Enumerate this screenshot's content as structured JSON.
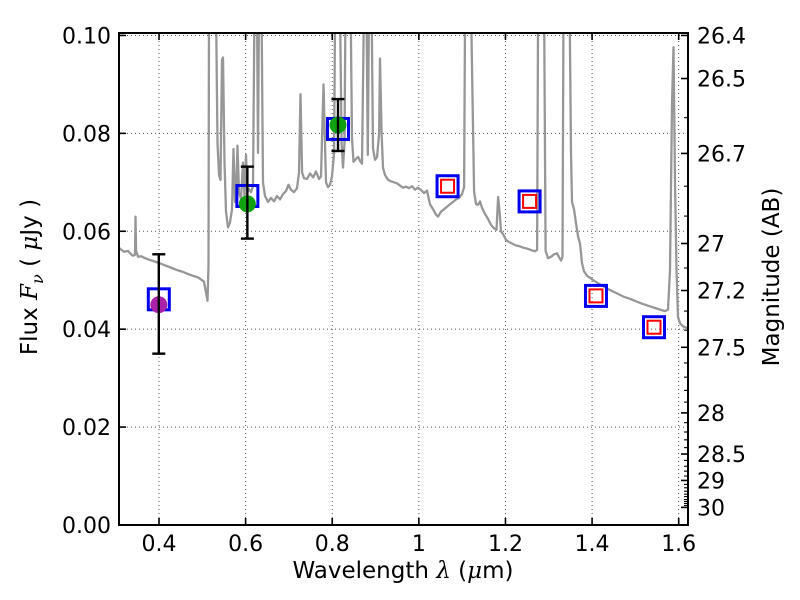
{
  "figure": {
    "background": "#FFFFFF",
    "xlabel_segments": [
      {
        "t": "Wavelength  "
      },
      {
        "t": "λ",
        "i": true
      },
      {
        "t": " ("
      },
      {
        "t": "μ",
        "i": true
      },
      {
        "t": "m)"
      }
    ],
    "ylabel_left_segments": [
      {
        "t": "Flux  "
      },
      {
        "t": "F",
        "i": true
      },
      {
        "t": "ν",
        "i": true,
        "sub": true
      },
      {
        "t": "  ( "
      },
      {
        "t": "μ",
        "i": true
      },
      {
        "t": "Jy )"
      }
    ],
    "ylabel_right": "Magnitude (AB)"
  },
  "chart_data": {
    "type": "line",
    "title": "",
    "xlabel": "Wavelength λ (μm)",
    "ylabel": "Flux Fν ( μJy )",
    "ylabel_right": "Magnitude (AB)",
    "grid": true,
    "legend_position": "none",
    "xlim": [
      0.3076,
      1.6215
    ],
    "ylim": [
      0,
      0.1005
    ],
    "xticks": [
      {
        "label": "0.4",
        "value": 0.4
      },
      {
        "label": "0.6",
        "value": 0.6
      },
      {
        "label": "0.8",
        "value": 0.8
      },
      {
        "label": "1",
        "value": 1.0
      },
      {
        "label": "1.2",
        "value": 1.2
      },
      {
        "label": "1.4",
        "value": 1.4
      },
      {
        "label": "1.6",
        "value": 1.6
      }
    ],
    "yticks_left": [
      {
        "label": "0.00",
        "value": 0.0
      },
      {
        "label": "0.02",
        "value": 0.02
      },
      {
        "label": "0.04",
        "value": 0.04
      },
      {
        "label": "0.06",
        "value": 0.06
      },
      {
        "label": "0.08",
        "value": 0.08
      },
      {
        "label": "0.10",
        "value": 0.1
      }
    ],
    "yticks_right": [
      {
        "label": "26.4",
        "flux": 0.1
      },
      {
        "label": "26.5",
        "flux": 0.0912
      },
      {
        "label": "26.7",
        "flux": 0.0759
      },
      {
        "label": "27",
        "flux": 0.0575
      },
      {
        "label": "27.2",
        "flux": 0.0479
      },
      {
        "label": "27.5",
        "flux": 0.0363
      },
      {
        "label": "28",
        "flux": 0.0229
      },
      {
        "label": "28.5",
        "flux": 0.0145
      },
      {
        "label": "29",
        "flux": 0.0091
      },
      {
        "label": "30",
        "flux": 0.0036
      }
    ],
    "yticks_right_minor_flux": [
      0.0832,
      0.0692,
      0.0631,
      0.0525,
      0.0437,
      0.0398,
      0.0331,
      0.0302,
      0.0275,
      0.0251,
      0.0209,
      0.019,
      0.0174,
      0.0158,
      0.0132,
      0.012,
      0.011,
      0.01,
      0.0083,
      0.0076,
      0.0069,
      0.0063,
      0.0058,
      0.0052,
      0.0048,
      0.0044,
      0.004
    ],
    "style": {
      "spectrum_color": "#979797",
      "grid_color": "#555555",
      "frame_color": "#000000",
      "errorbar_color": "#000000",
      "blue": "#0000EE",
      "red": "#FF0000",
      "green": "#10A010",
      "magenta": "#AA22AA",
      "square_size": 21,
      "red_square_size": 13,
      "circle_radius": 8.5
    },
    "detections": [
      {
        "x": 0.3995,
        "y": 0.045,
        "err_lo": 0.035,
        "err_hi": 0.0553,
        "square_y": 0.0461,
        "color": "#AA22AA"
      },
      {
        "x": 0.604,
        "y": 0.0656,
        "err_lo": 0.0585,
        "err_hi": 0.0732,
        "square_y": 0.0672,
        "color": "#10A010"
      },
      {
        "x": 0.8133,
        "y": 0.0817,
        "err_lo": 0.0764,
        "err_hi": 0.087,
        "square_y": 0.0809,
        "color": "#10A010"
      }
    ],
    "upper_limits": [
      {
        "x": 1.0663,
        "y": 0.0692
      },
      {
        "x": 1.2557,
        "y": 0.0661
      },
      {
        "x": 1.409,
        "y": 0.0468
      },
      {
        "x": 1.543,
        "y": 0.0404
      }
    ],
    "spectrum": {
      "name": "model-spectrum",
      "points": [
        [
          0.3076,
          0.0566
        ],
        [
          0.3192,
          0.0558
        ],
        [
          0.3284,
          0.056
        ],
        [
          0.3353,
          0.0553
        ],
        [
          0.3399,
          0.055
        ],
        [
          0.3445,
          0.0552
        ],
        [
          0.3457,
          0.063
        ],
        [
          0.347,
          0.056
        ],
        [
          0.3515,
          0.0548
        ],
        [
          0.3584,
          0.0549
        ],
        [
          0.3677,
          0.0545
        ],
        [
          0.3769,
          0.0542
        ],
        [
          0.3838,
          0.054
        ],
        [
          0.3908,
          0.0538
        ],
        [
          0.3977,
          0.0536
        ],
        [
          0.4092,
          0.0532
        ],
        [
          0.4208,
          0.0528
        ],
        [
          0.4323,
          0.0524
        ],
        [
          0.4439,
          0.052
        ],
        [
          0.4554,
          0.0517
        ],
        [
          0.467,
          0.0513
        ],
        [
          0.4785,
          0.0509
        ],
        [
          0.4901,
          0.0506
        ],
        [
          0.4993,
          0.05
        ],
        [
          0.5039,
          0.0497
        ],
        [
          0.5085,
          0.0475
        ],
        [
          0.512,
          0.0458
        ],
        [
          0.5143,
          0.053
        ],
        [
          0.5155,
          0.106
        ],
        [
          0.5316,
          0.106
        ],
        [
          0.5351,
          0.078
        ],
        [
          0.5386,
          0.0715
        ],
        [
          0.542,
          0.0705
        ],
        [
          0.5455,
          0.095
        ],
        [
          0.5478,
          0.0955
        ],
        [
          0.5513,
          0.074
        ],
        [
          0.5547,
          0.064
        ],
        [
          0.5594,
          0.0608
        ],
        [
          0.564,
          0.0618
        ],
        [
          0.5686,
          0.0645
        ],
        [
          0.5721,
          0.0768
        ],
        [
          0.5755,
          0.066
        ],
        [
          0.5779,
          0.068
        ],
        [
          0.5813,
          0.0775
        ],
        [
          0.5848,
          0.068
        ],
        [
          0.5894,
          0.0665
        ],
        [
          0.594,
          0.074
        ],
        [
          0.5975,
          0.0672
        ],
        [
          0.6009,
          0.0756
        ],
        [
          0.6044,
          0.068
        ],
        [
          0.6078,
          0.0686
        ],
        [
          0.6125,
          0.068
        ],
        [
          0.6171,
          0.0692
        ],
        [
          0.6205,
          0.106
        ],
        [
          0.6263,
          0.106
        ],
        [
          0.6286,
          0.076
        ],
        [
          0.6309,
          0.106
        ],
        [
          0.6367,
          0.106
        ],
        [
          0.6402,
          0.07
        ],
        [
          0.6448,
          0.0672
        ],
        [
          0.6517,
          0.066
        ],
        [
          0.6586,
          0.0668
        ],
        [
          0.6656,
          0.0661
        ],
        [
          0.6725,
          0.0672
        ],
        [
          0.6794,
          0.0665
        ],
        [
          0.6864,
          0.0676
        ],
        [
          0.6933,
          0.0682
        ],
        [
          0.6991,
          0.0695
        ],
        [
          0.7048,
          0.0685
        ],
        [
          0.7118,
          0.068
        ],
        [
          0.7187,
          0.0688
        ],
        [
          0.7233,
          0.072
        ],
        [
          0.7268,
          0.088
        ],
        [
          0.7303,
          0.072
        ],
        [
          0.7349,
          0.0708
        ],
        [
          0.7418,
          0.0707
        ],
        [
          0.7487,
          0.0718
        ],
        [
          0.7557,
          0.071
        ],
        [
          0.7626,
          0.0722
        ],
        [
          0.7695,
          0.0707
        ],
        [
          0.7741,
          0.0712
        ],
        [
          0.7799,
          0.09
        ],
        [
          0.7857,
          0.07
        ],
        [
          0.7903,
          0.069
        ],
        [
          0.7949,
          0.0695
        ],
        [
          0.7995,
          0.0712
        ],
        [
          0.8042,
          0.076
        ],
        [
          0.8065,
          0.106
        ],
        [
          0.818,
          0.106
        ],
        [
          0.8215,
          0.078
        ],
        [
          0.8249,
          0.073
        ],
        [
          0.8284,
          0.078
        ],
        [
          0.8307,
          0.106
        ],
        [
          0.8423,
          0.106
        ],
        [
          0.8457,
          0.079
        ],
        [
          0.8492,
          0.0742
        ],
        [
          0.855,
          0.0748
        ],
        [
          0.8596,
          0.0752
        ],
        [
          0.8642,
          0.0744
        ],
        [
          0.8688,
          0.0738
        ],
        [
          0.8734,
          0.106
        ],
        [
          0.8792,
          0.106
        ],
        [
          0.8822,
          0.0756
        ],
        [
          0.885,
          0.106
        ],
        [
          0.8908,
          0.106
        ],
        [
          0.8942,
          0.077
        ],
        [
          0.8988,
          0.0746
        ],
        [
          0.9035,
          0.0752
        ],
        [
          0.9081,
          0.08
        ],
        [
          0.9104,
          0.0953
        ],
        [
          0.9139,
          0.08
        ],
        [
          0.9173,
          0.073
        ],
        [
          0.9219,
          0.0715
        ],
        [
          0.9289,
          0.0705
        ],
        [
          0.9358,
          0.0702
        ],
        [
          0.9427,
          0.07
        ],
        [
          0.9496,
          0.0698
        ],
        [
          0.9566,
          0.0693
        ],
        [
          0.9635,
          0.0689
        ],
        [
          0.9704,
          0.0691
        ],
        [
          0.9773,
          0.0688
        ],
        [
          0.9843,
          0.0692
        ],
        [
          0.9912,
          0.0685
        ],
        [
          0.9981,
          0.0689
        ],
        [
          1.0051,
          0.0684
        ],
        [
          1.012,
          0.0678
        ],
        [
          1.0189,
          0.0683
        ],
        [
          1.0258,
          0.0655
        ],
        [
          1.0328,
          0.0645
        ],
        [
          1.0397,
          0.0634
        ],
        [
          1.0443,
          0.063
        ],
        [
          1.0512,
          0.064
        ],
        [
          1.0582,
          0.0645
        ],
        [
          1.0651,
          0.065
        ],
        [
          1.072,
          0.0655
        ],
        [
          1.079,
          0.066
        ],
        [
          1.0859,
          0.0665
        ],
        [
          1.0928,
          0.0668
        ],
        [
          1.0997,
          0.0676
        ],
        [
          1.1044,
          0.069
        ],
        [
          1.1067,
          0.106
        ],
        [
          1.1205,
          0.106
        ],
        [
          1.1275,
          0.068
        ],
        [
          1.1321,
          0.0655
        ],
        [
          1.1367,
          0.0654
        ],
        [
          1.1413,
          0.0661
        ],
        [
          1.1459,
          0.0648
        ],
        [
          1.1529,
          0.0635
        ],
        [
          1.1598,
          0.0625
        ],
        [
          1.1667,
          0.0613
        ],
        [
          1.1737,
          0.0606
        ],
        [
          1.1794,
          0.0603
        ],
        [
          1.1829,
          0.067
        ],
        [
          1.1864,
          0.064
        ],
        [
          1.1898,
          0.06
        ],
        [
          1.1945,
          0.0594
        ],
        [
          1.2014,
          0.0582
        ],
        [
          1.2083,
          0.0578
        ],
        [
          1.2152,
          0.0575
        ],
        [
          1.2245,
          0.0571
        ],
        [
          1.2337,
          0.0569
        ],
        [
          1.2429,
          0.0566
        ],
        [
          1.2522,
          0.0564
        ],
        [
          1.2614,
          0.0561
        ],
        [
          1.2683,
          0.0559
        ],
        [
          1.273,
          0.0562
        ],
        [
          1.2753,
          0.106
        ],
        [
          1.2891,
          0.106
        ],
        [
          1.2926,
          0.056
        ],
        [
          1.2983,
          0.0545
        ],
        [
          1.3053,
          0.0548
        ],
        [
          1.3122,
          0.0553
        ],
        [
          1.3191,
          0.0555
        ],
        [
          1.3249,
          0.0545
        ],
        [
          1.3284,
          0.054
        ],
        [
          1.3318,
          0.0548
        ],
        [
          1.3341,
          0.106
        ],
        [
          1.348,
          0.106
        ],
        [
          1.3514,
          0.076
        ],
        [
          1.3537,
          0.066
        ],
        [
          1.3583,
          0.0645
        ],
        [
          1.363,
          0.0615
        ],
        [
          1.3676,
          0.059
        ],
        [
          1.3722,
          0.0575
        ],
        [
          1.3768,
          0.0535
        ],
        [
          1.3814,
          0.0518
        ],
        [
          1.3884,
          0.0509
        ],
        [
          1.3953,
          0.0505
        ],
        [
          1.4045,
          0.0499
        ],
        [
          1.4137,
          0.0494
        ],
        [
          1.4253,
          0.0488
        ],
        [
          1.4368,
          0.0482
        ],
        [
          1.4484,
          0.0477
        ],
        [
          1.4599,
          0.0472
        ],
        [
          1.4738,
          0.0466
        ],
        [
          1.4876,
          0.0462
        ],
        [
          1.5015,
          0.0457
        ],
        [
          1.5153,
          0.0452
        ],
        [
          1.5292,
          0.0448
        ],
        [
          1.543,
          0.0444
        ],
        [
          1.5569,
          0.044
        ],
        [
          1.5684,
          0.0437
        ],
        [
          1.5754,
          0.044
        ],
        [
          1.58,
          0.052
        ],
        [
          1.5846,
          0.086
        ],
        [
          1.5881,
          0.0976
        ],
        [
          1.5915,
          0.07
        ],
        [
          1.595,
          0.052
        ],
        [
          1.5985,
          0.0425
        ],
        [
          1.6031,
          0.0412
        ],
        [
          1.61,
          0.0406
        ],
        [
          1.6169,
          0.0403
        ],
        [
          1.6215,
          0.0402
        ]
      ]
    }
  }
}
